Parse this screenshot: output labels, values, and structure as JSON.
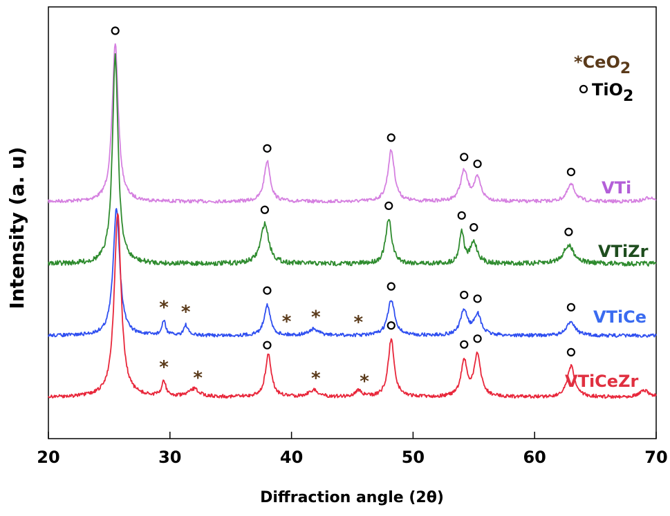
{
  "chart_data": {
    "type": "line",
    "title": "",
    "xlabel": "Diffraction angle (2θ)",
    "ylabel": "Intensity (a. u)",
    "xlim": [
      20,
      70
    ],
    "xticks": [
      20,
      30,
      40,
      50,
      60,
      70
    ],
    "grid": false,
    "legend": {
      "position": "top-right",
      "entries": [
        {
          "symbol": "*",
          "text": "CeO",
          "sub": "2",
          "color": "#5a3a1a"
        },
        {
          "symbol": "o",
          "text": "TiO",
          "sub": "2",
          "color": "#000000"
        }
      ]
    },
    "series": [
      {
        "name": "VTi",
        "color": "#d580e0",
        "label_color": "#b35fd8",
        "baseline": 1.0,
        "peaks": [
          [
            25.5,
            7.4,
            0.3
          ],
          [
            38.0,
            1.9,
            0.3
          ],
          [
            48.2,
            2.4,
            0.32
          ],
          [
            54.2,
            1.4,
            0.35
          ],
          [
            55.3,
            1.05,
            0.35
          ],
          [
            63.0,
            0.8,
            0.4
          ],
          [
            69.5,
            0.2,
            0.5
          ]
        ],
        "tio2_markers": [
          25.5,
          38.0,
          48.2,
          54.2,
          55.3,
          63.0
        ],
        "ceo2_markers": []
      },
      {
        "name": "VTiZr",
        "color": "#2e8b2e",
        "label_color": "#1e4d1e",
        "baseline": 0.0,
        "peaks": [
          [
            25.5,
            10.4,
            0.28
          ],
          [
            37.8,
            2.0,
            0.4
          ],
          [
            48.0,
            2.2,
            0.3
          ],
          [
            54.0,
            1.6,
            0.22
          ],
          [
            55.0,
            1.05,
            0.35
          ],
          [
            62.8,
            0.9,
            0.55
          ]
        ],
        "tio2_markers": [
          37.8,
          48.0,
          54.0,
          55.0,
          62.8
        ],
        "ceo2_markers": []
      },
      {
        "name": "VTiCe",
        "color": "#2f4ff0",
        "label_color": "#3a6bf0",
        "baseline": 1.0,
        "peaks": [
          [
            25.6,
            6.2,
            0.32
          ],
          [
            29.5,
            0.7,
            0.18
          ],
          [
            31.3,
            0.5,
            0.2
          ],
          [
            38.0,
            1.5,
            0.3
          ],
          [
            41.8,
            0.3,
            0.5
          ],
          [
            48.2,
            1.7,
            0.35
          ],
          [
            54.2,
            1.2,
            0.35
          ],
          [
            55.3,
            1.0,
            0.35
          ],
          [
            63.0,
            0.7,
            0.4
          ]
        ],
        "tio2_markers": [
          38.0,
          48.2,
          54.2,
          55.3,
          63.0
        ],
        "ceo2_markers": [
          29.5,
          31.3,
          39.6,
          42.0,
          45.5
        ]
      },
      {
        "name": "VTiCeZr",
        "color": "#e8263a",
        "label_color": "#e03040",
        "baseline": 0.0,
        "peaks": [
          [
            25.7,
            8.3,
            0.34
          ],
          [
            29.5,
            0.7,
            0.2
          ],
          [
            32.0,
            0.35,
            0.5
          ],
          [
            38.1,
            1.9,
            0.3
          ],
          [
            41.8,
            0.3,
            0.5
          ],
          [
            45.5,
            0.3,
            0.3
          ],
          [
            48.2,
            2.6,
            0.3
          ],
          [
            54.2,
            1.6,
            0.3
          ],
          [
            55.3,
            1.9,
            0.32
          ],
          [
            63.0,
            1.4,
            0.35
          ],
          [
            69.0,
            0.3,
            0.5
          ]
        ],
        "tio2_markers": [
          38.0,
          48.2,
          54.2,
          55.3,
          63.0
        ],
        "ceo2_markers": [
          29.5,
          32.3,
          42.0,
          46.0
        ]
      }
    ]
  }
}
